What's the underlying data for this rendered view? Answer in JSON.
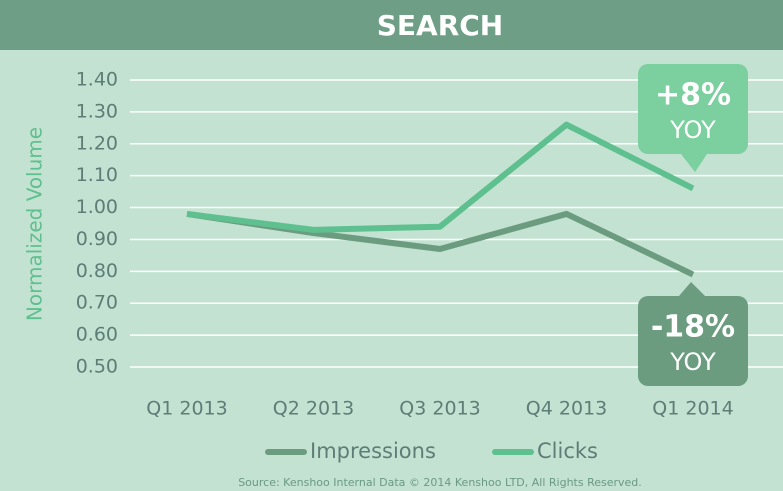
{
  "chart_data": {
    "type": "line",
    "title": "SEARCH",
    "y_label": "Normalized Volume",
    "categories": [
      "Q1 2013",
      "Q2 2013",
      "Q3 2013",
      "Q4 2013",
      "Q1 2014"
    ],
    "series": [
      {
        "name": "Impressions",
        "color": "#6b9c80",
        "values": [
          0.98,
          0.92,
          0.87,
          0.98,
          0.79
        ]
      },
      {
        "name": "Clicks",
        "color": "#5fc08f",
        "values": [
          0.98,
          0.93,
          0.94,
          1.26,
          1.06
        ]
      }
    ],
    "ylim": [
      0.5,
      1.4
    ],
    "yticks": [
      {
        "value": 0.5,
        "label": "0.50"
      },
      {
        "value": 0.6,
        "label": "0.60"
      },
      {
        "value": 0.7,
        "label": "0.70"
      },
      {
        "value": 0.8,
        "label": "0.80"
      },
      {
        "value": 0.9,
        "label": "0.90"
      },
      {
        "value": 1.0,
        "label": "1.00"
      },
      {
        "value": 1.1,
        "label": "1.10"
      },
      {
        "value": 1.2,
        "label": "1.20"
      },
      {
        "value": 1.3,
        "label": "1.30"
      },
      {
        "value": 1.4,
        "label": "1.40"
      }
    ],
    "grid": true,
    "annotations": [
      {
        "text": "+8%",
        "sub": "YOY",
        "color": "#7ccf9f"
      },
      {
        "text": "-18%",
        "sub": "YOY",
        "color": "#6b9c80"
      }
    ],
    "source": "Source: Kenshoo Internal Data © 2014 Kenshoo LTD, All Rights Reserved."
  }
}
